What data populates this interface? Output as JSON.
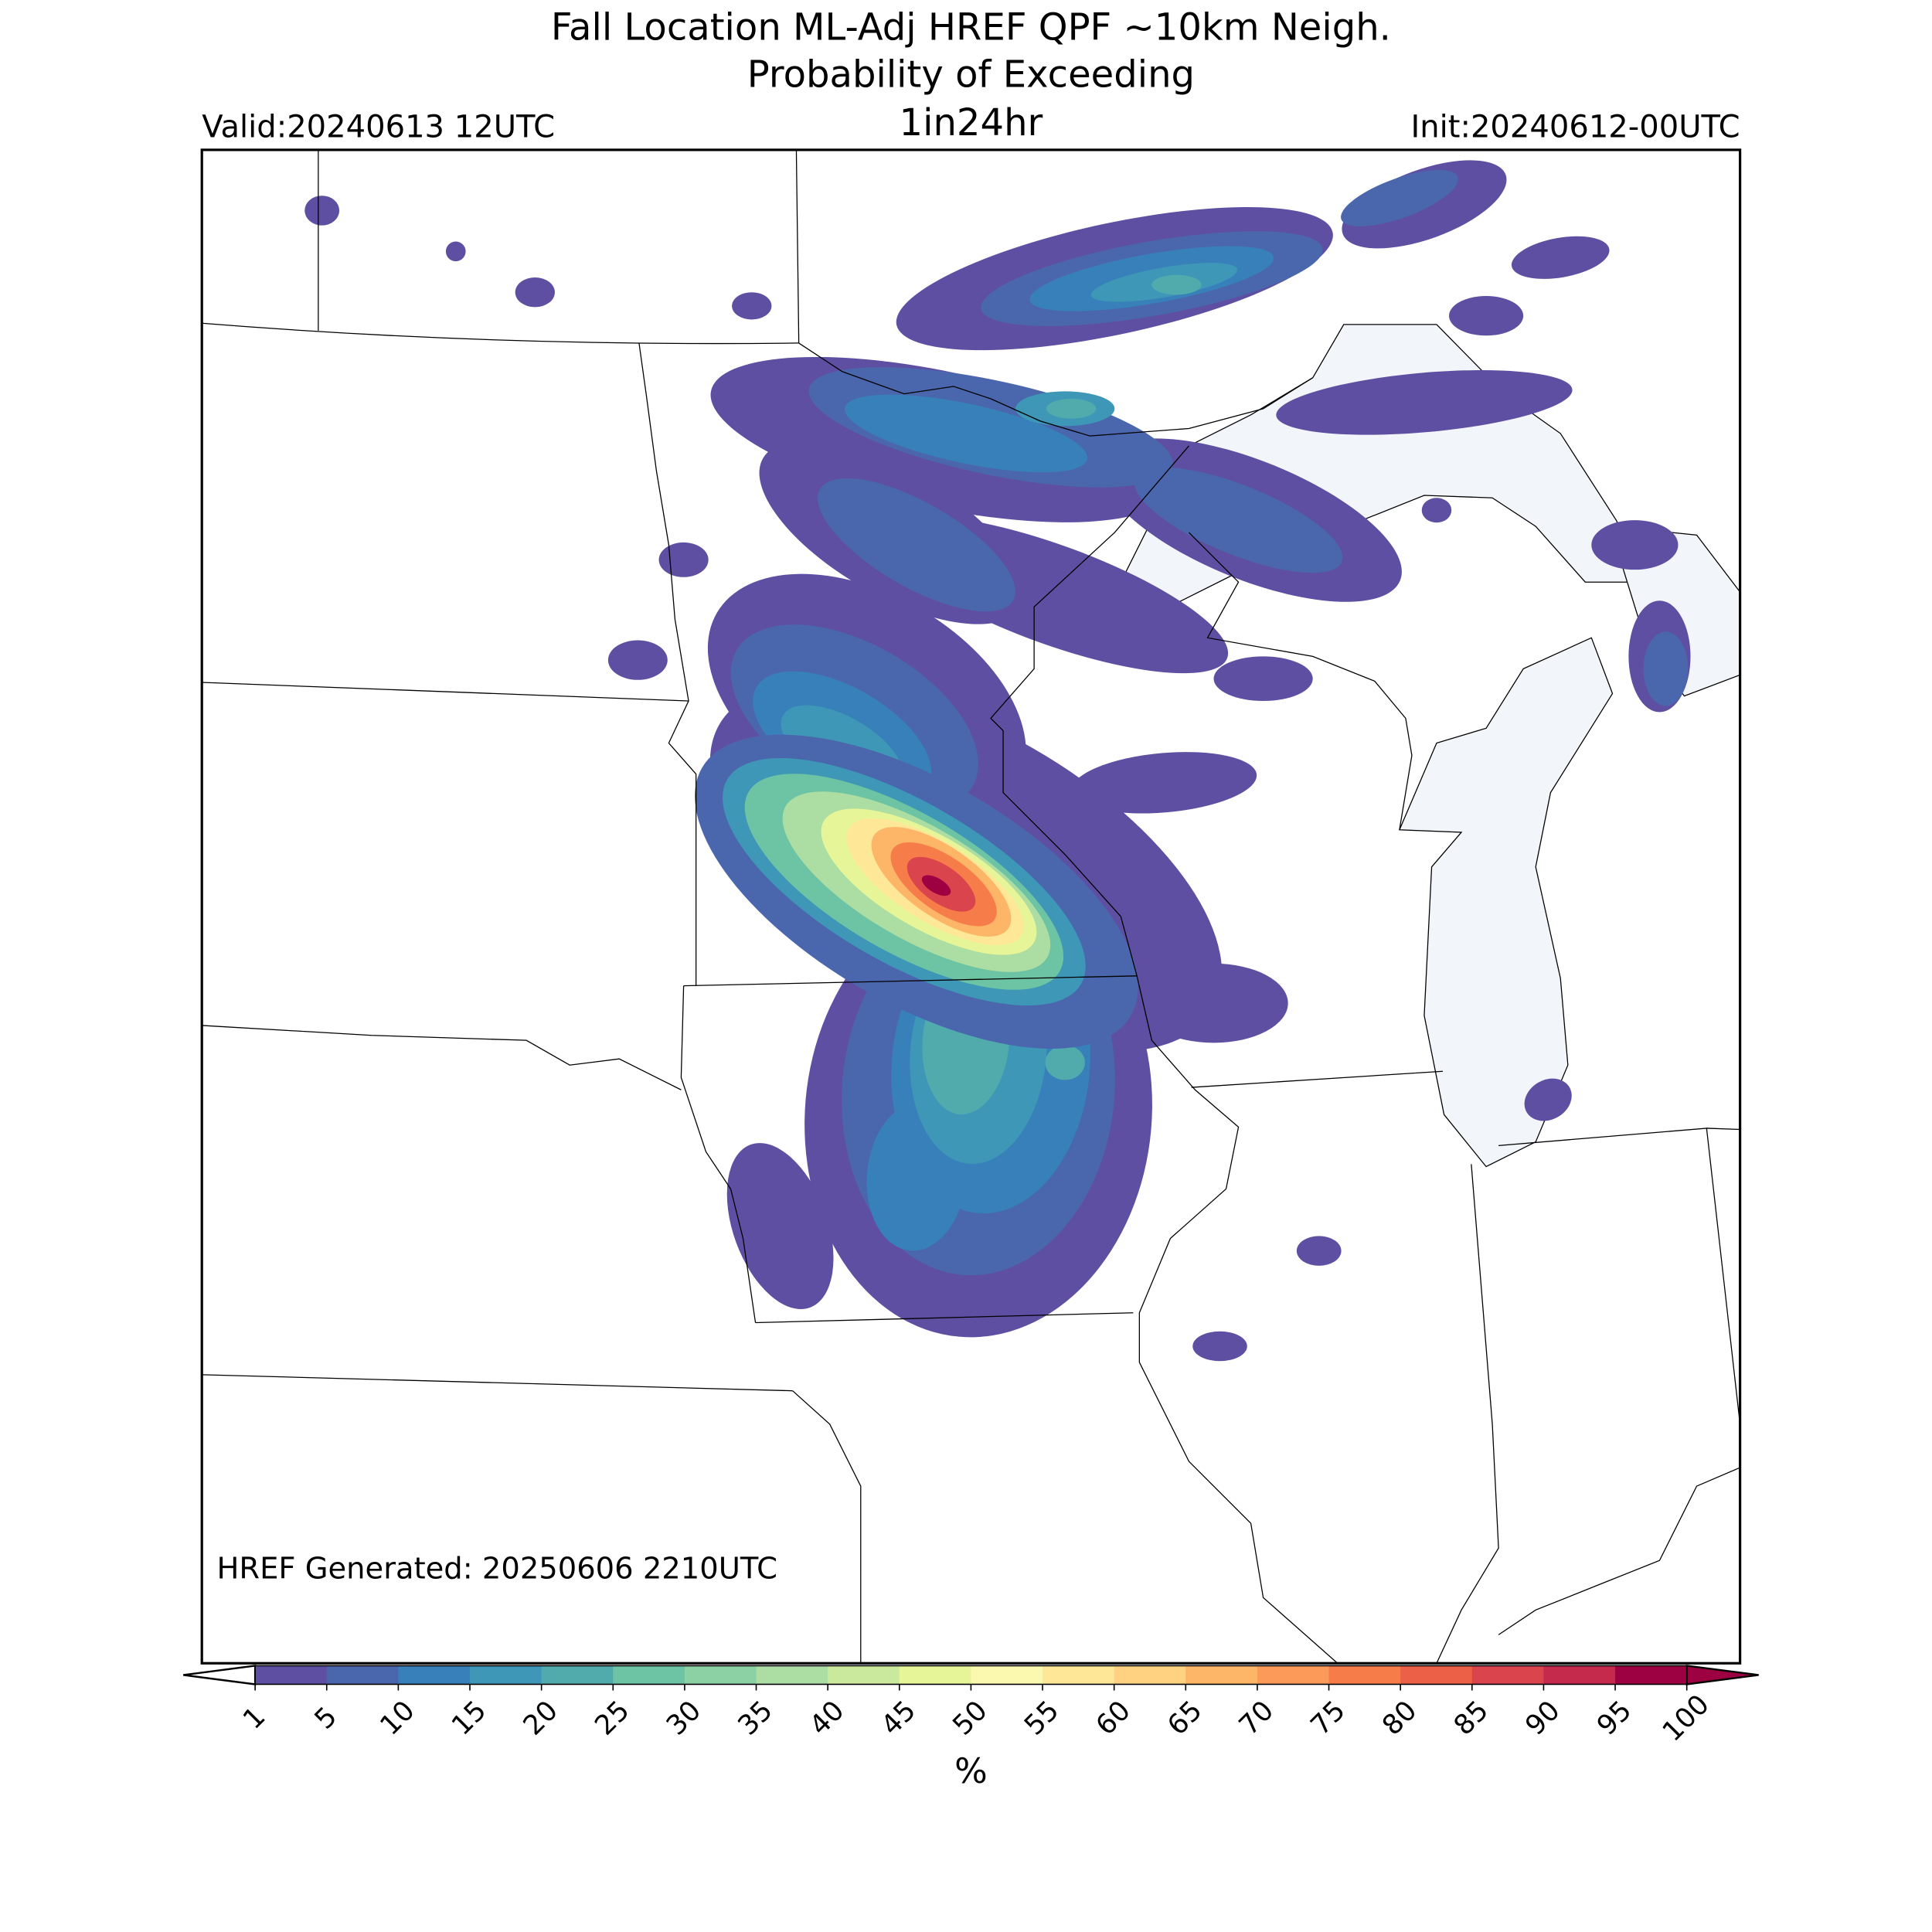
{
  "header": {
    "title_line1": "Fall Location ML-Adj HREF QPF ~10km Neigh.",
    "title_line2": "Probability of Exceeding",
    "threshold": "1in24hr",
    "valid": "Valid:20240613 12UTC",
    "init": "Init:20240612-00UTC"
  },
  "footer_note": "HREF Generated: 20250606 2210UTC",
  "colorbar": {
    "label": "%",
    "ticks": [
      1,
      5,
      10,
      15,
      20,
      25,
      30,
      35,
      40,
      45,
      50,
      55,
      60,
      65,
      70,
      75,
      80,
      85,
      90,
      95,
      100
    ],
    "colors": [
      "#5e4fa2",
      "#4a67ad",
      "#3880b9",
      "#3e97b7",
      "#51abad",
      "#6cc4a4",
      "#8bd1a4",
      "#acdda3",
      "#cbe99d",
      "#e6f598",
      "#fbf8b0",
      "#fee898",
      "#fed281",
      "#fdb567",
      "#fb9a59",
      "#f67d4a",
      "#eb6046",
      "#d9444d",
      "#c52a4d",
      "#9e0142"
    ]
  }
}
